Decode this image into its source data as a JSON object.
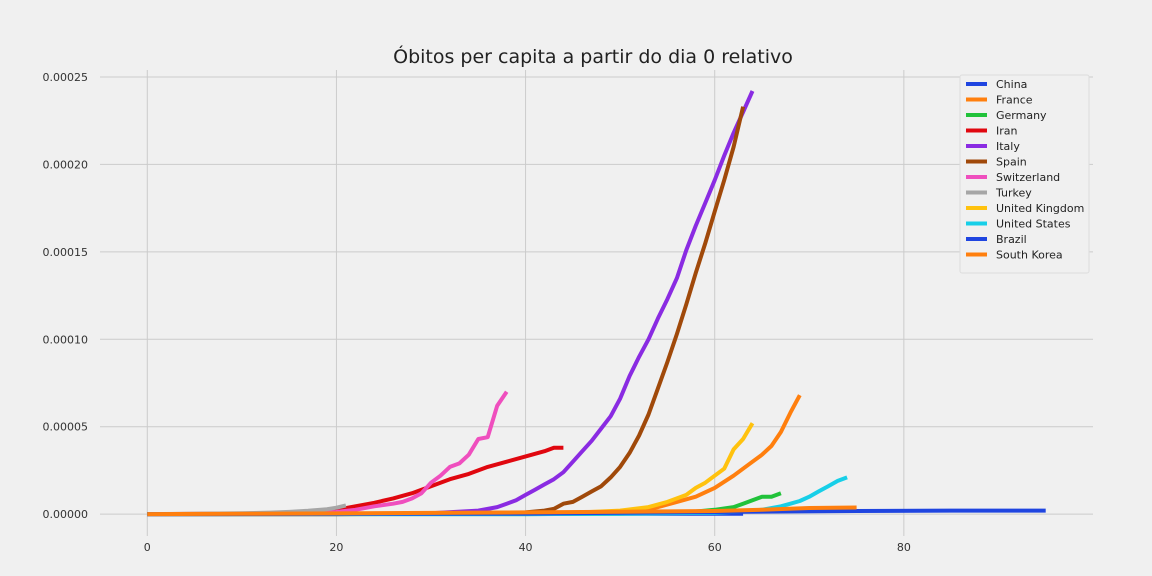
{
  "chart_data": {
    "type": "line",
    "title": "Óbitos per capita a partir do dia 0 relativo",
    "xlabel": "",
    "ylabel": "",
    "xlim": [
      -5,
      100
    ],
    "ylim": [
      -1.25e-05,
      0.000254
    ],
    "xticks": [
      0,
      20,
      40,
      60,
      80
    ],
    "xtick_labels": [
      "0",
      "20",
      "40",
      "60",
      "80"
    ],
    "yticks": [
      0,
      5e-05,
      0.0001,
      0.00015,
      0.0002,
      0.00025
    ],
    "ytick_labels": [
      "0.00000",
      "0.00005",
      "0.00010",
      "0.00015",
      "0.00020",
      "0.00025"
    ],
    "grid": true,
    "legend_position": "top-right",
    "series": [
      {
        "name": "China",
        "color": "#1f45e0",
        "x": [
          0,
          10,
          20,
          30,
          40,
          50,
          60,
          63
        ],
        "y": [
          0,
          1e-07,
          2e-07,
          2e-07,
          2e-07,
          2e-07,
          2e-07,
          2e-07
        ]
      },
      {
        "name": "France",
        "color": "#ff7f0e",
        "x": [
          0,
          20,
          40,
          45,
          50,
          52,
          54,
          56,
          58,
          60,
          62,
          64,
          65,
          66,
          67,
          68,
          69
        ],
        "y": [
          0,
          0,
          3e-07,
          6e-07,
          1.5e-06,
          2.5e-06,
          4e-06,
          7e-06,
          1e-05,
          1.5e-05,
          2.2e-05,
          3e-05,
          3.4e-05,
          3.9e-05,
          4.7e-05,
          5.8e-05,
          6.8e-05
        ]
      },
      {
        "name": "Germany",
        "color": "#21c23a",
        "x": [
          0,
          40,
          50,
          55,
          58,
          60,
          62,
          63,
          64,
          65,
          66,
          67
        ],
        "y": [
          0,
          0,
          3e-07,
          8e-07,
          1.5e-06,
          2.5e-06,
          4e-06,
          6e-06,
          8e-06,
          1e-05,
          1e-05,
          1.2e-05
        ]
      },
      {
        "name": "Iran",
        "color": "#e0070f",
        "x": [
          0,
          10,
          15,
          18,
          20,
          22,
          24,
          26,
          28,
          30,
          32,
          34,
          36,
          38,
          40,
          42,
          43,
          44
        ],
        "y": [
          0,
          3e-07,
          8e-07,
          1.5e-06,
          2.5e-06,
          4.5e-06,
          6.5e-06,
          9e-06,
          1.2e-05,
          1.6e-05,
          2e-05,
          2.3e-05,
          2.7e-05,
          3e-05,
          3.3e-05,
          3.6e-05,
          3.8e-05,
          3.8e-05
        ]
      },
      {
        "name": "Italy",
        "color": "#8a2be2",
        "x": [
          0,
          20,
          30,
          35,
          37,
          38,
          39,
          40,
          41,
          42,
          43,
          44,
          45,
          46,
          47,
          48,
          49,
          50,
          51,
          52,
          53,
          54,
          55,
          56,
          57,
          58,
          59,
          60,
          61,
          62,
          63,
          64
        ],
        "y": [
          0,
          0,
          5e-07,
          2e-06,
          4e-06,
          6e-06,
          8e-06,
          1.1e-05,
          1.4e-05,
          1.7e-05,
          2e-05,
          2.4e-05,
          3e-05,
          3.6e-05,
          4.2e-05,
          4.9e-05,
          5.6e-05,
          6.6e-05,
          7.9e-05,
          9e-05,
          0.0001,
          0.000112,
          0.000123,
          0.000135,
          0.000151,
          0.000165,
          0.000178,
          0.000191,
          0.000205,
          0.000218,
          0.00023,
          0.000242
        ]
      },
      {
        "name": "Spain",
        "color": "#a0490a",
        "x": [
          0,
          20,
          30,
          40,
          42,
          43,
          44,
          45,
          46,
          47,
          48,
          49,
          50,
          51,
          52,
          53,
          54,
          55,
          56,
          57,
          58,
          59,
          60,
          61,
          62,
          63
        ],
        "y": [
          0,
          0,
          3e-07,
          1e-06,
          2e-06,
          3e-06,
          6e-06,
          7e-06,
          1e-05,
          1.3e-05,
          1.6e-05,
          2.1e-05,
          2.7e-05,
          3.5e-05,
          4.5e-05,
          5.7e-05,
          7.2e-05,
          8.7e-05,
          0.000103,
          0.00012,
          0.000138,
          0.000155,
          0.000173,
          0.000191,
          0.00021,
          0.000233
        ]
      },
      {
        "name": "Switzerland",
        "color": "#ef4fbe",
        "x": [
          0,
          10,
          15,
          20,
          22,
          24,
          26,
          27,
          28,
          29,
          30,
          31,
          32,
          33,
          34,
          35,
          36,
          37,
          38
        ],
        "y": [
          0,
          1e-07,
          5e-07,
          1.2e-06,
          2.5e-06,
          4.5e-06,
          6e-06,
          7e-06,
          9e-06,
          1.2e-05,
          1.8e-05,
          2.2e-05,
          2.7e-05,
          2.9e-05,
          3.4e-05,
          4.3e-05,
          4.4e-05,
          6.2e-05,
          7e-05
        ]
      },
      {
        "name": "Turkey",
        "color": "#a6a6a6",
        "x": [
          0,
          5,
          10,
          13,
          15,
          17,
          19,
          20,
          21
        ],
        "y": [
          0,
          2e-07,
          5e-07,
          9e-07,
          1.3e-06,
          1.9e-06,
          2.8e-06,
          3.7e-06,
          5e-06
        ]
      },
      {
        "name": "United Kingdom",
        "color": "#ffc20e",
        "x": [
          0,
          40,
          45,
          50,
          53,
          55,
          56,
          57,
          58,
          59,
          60,
          61,
          62,
          63,
          64
        ],
        "y": [
          0,
          3e-07,
          8e-07,
          2e-06,
          4e-06,
          7e-06,
          9e-06,
          1.1e-05,
          1.5e-05,
          1.8e-05,
          2.2e-05,
          2.6e-05,
          3.7e-05,
          4.3e-05,
          5.2e-05
        ]
      },
      {
        "name": "United States",
        "color": "#17cfe8",
        "x": [
          0,
          40,
          50,
          60,
          63,
          65,
          67,
          68,
          69,
          70,
          71,
          72,
          73,
          74
        ],
        "y": [
          0,
          0,
          2e-07,
          8e-07,
          1.5e-06,
          2.5e-06,
          4.5e-06,
          6e-06,
          7.5e-06,
          1e-05,
          1.3e-05,
          1.6e-05,
          1.9e-05,
          2.1e-05
        ]
      },
      {
        "name": "Brazil",
        "color": "#1f45e0",
        "x": [
          0,
          40,
          60,
          75,
          85,
          95
        ],
        "y": [
          0,
          3e-07,
          1.2e-06,
          1.8e-06,
          2e-06,
          2e-06
        ]
      },
      {
        "name": "South Korea",
        "color": "#ff7f0e",
        "x": [
          0,
          10,
          20,
          30,
          40,
          50,
          60,
          65,
          70,
          75
        ],
        "y": [
          0,
          2e-07,
          4e-07,
          7e-07,
          1e-06,
          1.4e-06,
          1.8e-06,
          2.5e-06,
          3.5e-06,
          3.8e-06
        ]
      }
    ]
  }
}
